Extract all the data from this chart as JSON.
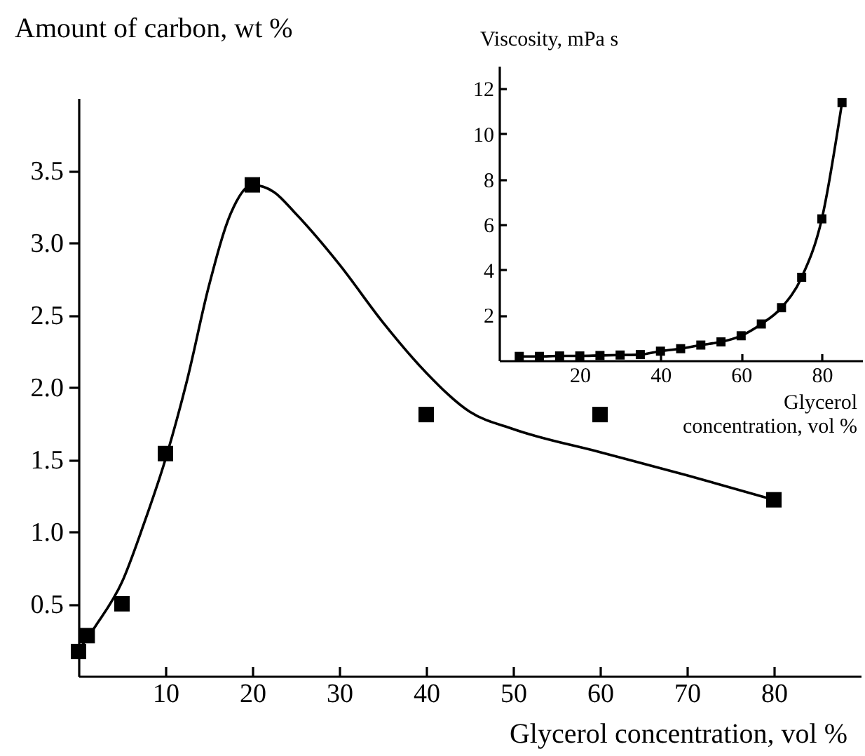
{
  "chart_data": [
    {
      "type": "scatter",
      "ylabel": "Amount of carbon, wt %",
      "xlabel": "Glycerol concentration, vol %",
      "x": [
        0,
        1,
        5,
        10,
        20,
        40,
        60,
        80
      ],
      "xlim": [
        0,
        90
      ],
      "ylim": [
        0,
        4
      ],
      "xticks": [
        10,
        20,
        30,
        40,
        50,
        60,
        70,
        80
      ],
      "yticks": [
        0.5,
        {
          "value": 1,
          "label": "1.0"
        },
        1.5,
        {
          "value": 2,
          "label": "2.0"
        },
        2.5,
        {
          "value": 3,
          "label": "3.0"
        },
        3.5
      ],
      "grid": false,
      "series": [
        {
          "color": "#000000",
          "marker": "square",
          "values": [
            0.17,
            0.28,
            0.5,
            1.54,
            3.4,
            1.81,
            1.81,
            1.22
          ]
        },
        {
          "type": "line",
          "color": "#000000",
          "marker": "none",
          "x": [
            0,
            2,
            5,
            7.5,
            10,
            12.5,
            15,
            17.5,
            20,
            22.5,
            25,
            30,
            35,
            40,
            45,
            50,
            60,
            70,
            80
          ],
          "values": [
            0.18,
            0.35,
            0.65,
            1.05,
            1.5,
            2.05,
            2.7,
            3.2,
            3.4,
            3.35,
            3.2,
            2.85,
            2.45,
            2.1,
            1.83,
            1.71,
            1.55,
            1.39,
            1.22
          ]
        }
      ]
    },
    {
      "type": "line",
      "ylabel": "Viscosity, mPa s",
      "xlabel": "Glycerol concentration, vol %",
      "x": [
        5,
        10,
        15,
        20,
        25,
        30,
        35,
        40,
        45,
        50,
        55,
        60,
        65,
        70,
        75,
        80,
        85
      ],
      "xlim": [
        0,
        90
      ],
      "ylim": [
        0,
        13
      ],
      "xticks": [
        20,
        40,
        60,
        80
      ],
      "yticks": [
        2,
        4,
        6,
        8,
        10,
        12
      ],
      "grid": false,
      "series": [
        {
          "color": "#000000",
          "marker": "square",
          "values": [
            0.18,
            0.18,
            0.2,
            0.2,
            0.22,
            0.24,
            0.26,
            0.41,
            0.52,
            0.68,
            0.82,
            1.09,
            1.61,
            2.33,
            3.67,
            6.25,
            11.38
          ]
        }
      ]
    }
  ]
}
